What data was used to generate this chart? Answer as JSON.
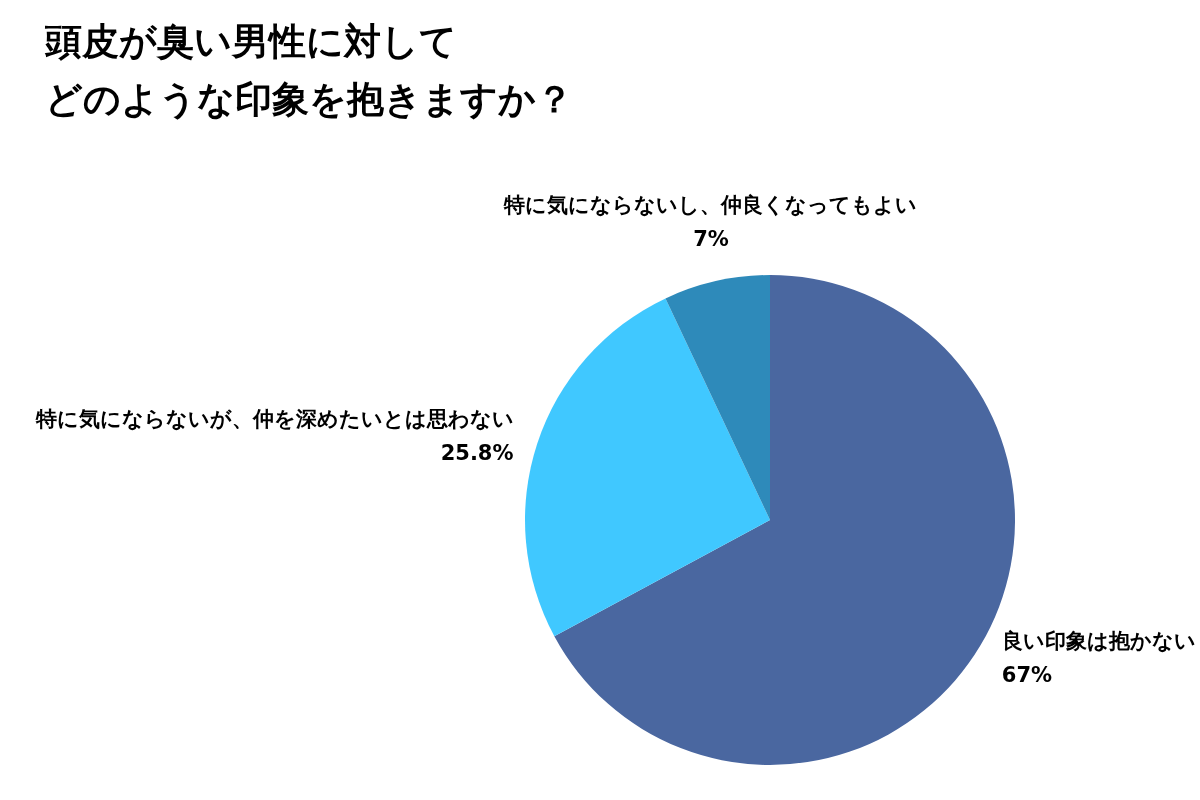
{
  "chart_data": {
    "type": "pie",
    "title": "頭皮が臭い男性に対してどのような印象を抱きますか？",
    "categories": [
      "良い印象は抱かない",
      "特に気にならないが、仲を深めたいとは思わない",
      "特に気にならないし、仲良くなってもよい"
    ],
    "values": [
      67,
      25.8,
      7
    ],
    "colors": [
      "#4a67a0",
      "#40c8ff",
      "#2e8aba"
    ],
    "value_labels": [
      "67%",
      "25.8%",
      "7%"
    ]
  }
}
